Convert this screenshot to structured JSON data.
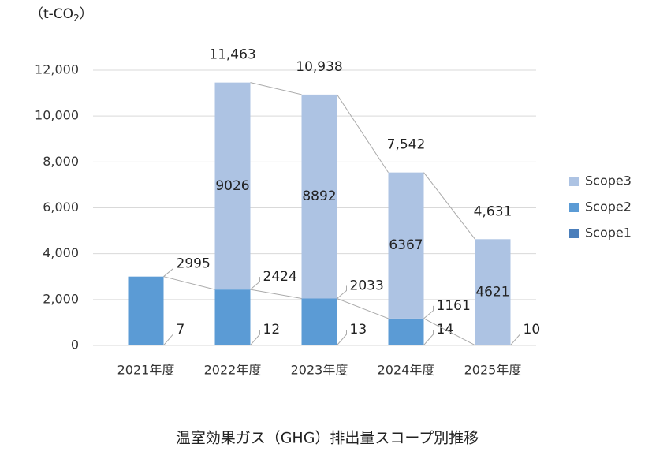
{
  "chart_data": {
    "type": "stacked_bar",
    "title": "温室効果ガス（GHG）排出量スコープ別推移",
    "unit": {
      "text": "（t-CO",
      "sub": "2",
      "end": "）"
    },
    "categories": [
      "2021年度",
      "2022年度",
      "2023年度",
      "2024年度",
      "2025年度"
    ],
    "series": [
      {
        "name": "Scope1",
        "color": "#4a7ebb",
        "values": [
          7,
          12,
          13,
          14,
          10
        ]
      },
      {
        "name": "Scope2",
        "color": "#5b9bd5",
        "values": [
          2995,
          2424,
          2033,
          1161,
          0
        ]
      },
      {
        "name": "Scope3",
        "color": "#adc3e3",
        "values": [
          null,
          9026,
          8892,
          6367,
          4621
        ]
      }
    ],
    "totals": [
      null,
      11463,
      10938,
      7542,
      4631
    ],
    "total_labels": [
      null,
      "11,463",
      "10,938",
      "7,542",
      "4,631"
    ],
    "ylim": [
      0,
      12000
    ],
    "yticks": [
      0,
      {
        "value": 2000,
        "label": "2,000"
      },
      {
        "value": 4000,
        "label": "4,000"
      },
      {
        "value": 6000,
        "label": "6,000"
      },
      {
        "value": 8000,
        "label": "8,000"
      },
      {
        "value": 10000,
        "label": "10,000"
      },
      {
        "value": 12000,
        "label": "12,000"
      }
    ],
    "grid": true,
    "legend": "right"
  }
}
